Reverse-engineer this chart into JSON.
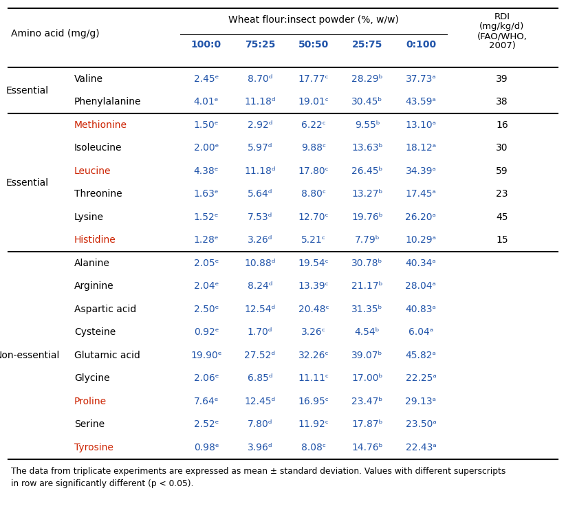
{
  "title_line1": "Wheat flour:insect powder (%, w/w)",
  "header_amino": "Amino acid (mg/g)",
  "header_rdi": "RDI\n(mg/kg/d)\n(FAO/WHO,\n2007)",
  "col_headers": [
    "100:0",
    "75:25",
    "50:50",
    "25:75",
    "0:100"
  ],
  "col_header_color": "#2255aa",
  "value_color": "#2255aa",
  "footnote": "The data from triplicate experiments are expressed as mean ± standard deviation. Values with different superscripts\nin row are significantly different (p < 0.05).",
  "rows": [
    {
      "group": "Essential",
      "name": "Valine",
      "name_color": "#000000",
      "values": [
        "2.45ᵉ",
        "8.70ᵈ",
        "17.77ᶜ",
        "28.29ᵇ",
        "37.73ᵃ"
      ],
      "rdi": "39"
    },
    {
      "group": "",
      "name": "Phenylalanine",
      "name_color": "#000000",
      "values": [
        "4.01ᵉ",
        "11.18ᵈ",
        "19.01ᶜ",
        "30.45ᵇ",
        "43.59ᵃ"
      ],
      "rdi": "38",
      "section_end": true
    },
    {
      "group": "Essential",
      "name": "Methionine",
      "name_color": "#cc2200",
      "values": [
        "1.50ᵉ",
        "2.92ᵈ",
        "6.22ᶜ",
        "9.55ᵇ",
        "13.10ᵃ"
      ],
      "rdi": "16"
    },
    {
      "group": "",
      "name": "Isoleucine",
      "name_color": "#000000",
      "values": [
        "2.00ᵉ",
        "5.97ᵈ",
        "9.88ᶜ",
        "13.63ᵇ",
        "18.12ᵃ"
      ],
      "rdi": "30"
    },
    {
      "group": "",
      "name": "Leucine",
      "name_color": "#cc2200",
      "values": [
        "4.38ᵉ",
        "11.18ᵈ",
        "17.80ᶜ",
        "26.45ᵇ",
        "34.39ᵃ"
      ],
      "rdi": "59"
    },
    {
      "group": "",
      "name": "Threonine",
      "name_color": "#000000",
      "values": [
        "1.63ᵉ",
        "5.64ᵈ",
        "8.80ᶜ",
        "13.27ᵇ",
        "17.45ᵃ"
      ],
      "rdi": "23"
    },
    {
      "group": "",
      "name": "Lysine",
      "name_color": "#000000",
      "values": [
        "1.52ᵉ",
        "7.53ᵈ",
        "12.70ᶜ",
        "19.76ᵇ",
        "26.20ᵃ"
      ],
      "rdi": "45"
    },
    {
      "group": "",
      "name": "Histidine",
      "name_color": "#cc2200",
      "values": [
        "1.28ᵉ",
        "3.26ᵈ",
        "5.21ᶜ",
        "7.79ᵇ",
        "10.29ᵃ"
      ],
      "rdi": "15",
      "section_end": true
    },
    {
      "group": "Non-essential",
      "name": "Alanine",
      "name_color": "#000000",
      "values": [
        "2.05ᵉ",
        "10.88ᵈ",
        "19.54ᶜ",
        "30.78ᵇ",
        "40.34ᵃ"
      ],
      "rdi": ""
    },
    {
      "group": "",
      "name": "Arginine",
      "name_color": "#000000",
      "values": [
        "2.04ᵉ",
        "8.24ᵈ",
        "13.39ᶜ",
        "21.17ᵇ",
        "28.04ᵃ"
      ],
      "rdi": ""
    },
    {
      "group": "",
      "name": "Aspartic acid",
      "name_color": "#000000",
      "values": [
        "2.50ᵉ",
        "12.54ᵈ",
        "20.48ᶜ",
        "31.35ᵇ",
        "40.83ᵃ"
      ],
      "rdi": ""
    },
    {
      "group": "",
      "name": "Cysteine",
      "name_color": "#000000",
      "values": [
        "0.92ᵉ",
        "1.70ᵈ",
        "3.26ᶜ",
        "4.54ᵇ",
        "6.04ᵃ"
      ],
      "rdi": ""
    },
    {
      "group": "",
      "name": "Glutamic acid",
      "name_color": "#000000",
      "values": [
        "19.90ᵉ",
        "27.52ᵈ",
        "32.26ᶜ",
        "39.07ᵇ",
        "45.82ᵃ"
      ],
      "rdi": ""
    },
    {
      "group": "",
      "name": "Glycine",
      "name_color": "#000000",
      "values": [
        "2.06ᵉ",
        "6.85ᵈ",
        "11.11ᶜ",
        "17.00ᵇ",
        "22.25ᵃ"
      ],
      "rdi": ""
    },
    {
      "group": "",
      "name": "Proline",
      "name_color": "#cc2200",
      "values": [
        "7.64ᵉ",
        "12.45ᵈ",
        "16.95ᶜ",
        "23.47ᵇ",
        "29.13ᵃ"
      ],
      "rdi": ""
    },
    {
      "group": "",
      "name": "Serine",
      "name_color": "#000000",
      "values": [
        "2.52ᵉ",
        "7.80ᵈ",
        "11.92ᶜ",
        "17.87ᵇ",
        "23.50ᵃ"
      ],
      "rdi": ""
    },
    {
      "group": "",
      "name": "Tyrosine",
      "name_color": "#cc2200",
      "values": [
        "0.98ᵉ",
        "3.96ᵈ",
        "8.08ᶜ",
        "14.76ᵇ",
        "22.43ᵃ"
      ],
      "rdi": "",
      "section_end": true
    }
  ],
  "figsize": [
    8.23,
    7.65
  ],
  "dpi": 100
}
